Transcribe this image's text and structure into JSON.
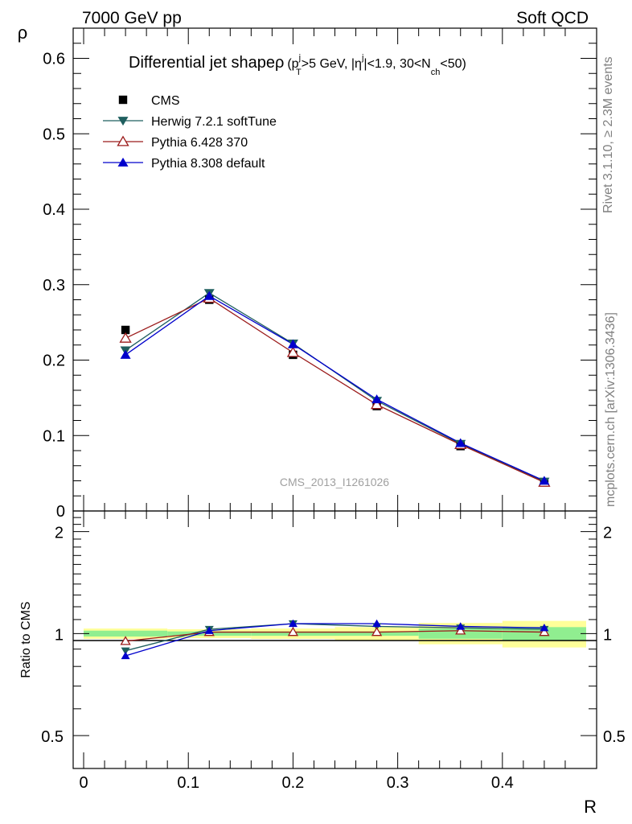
{
  "header": {
    "left": "7000 GeV pp",
    "right": "Soft QCD"
  },
  "side_labels": {
    "rivet": "Rivet 3.1.10, ≥ 2.3M events",
    "mcplots": "mcplots.cern.ch [arXiv:1306.3436]"
  },
  "watermark": "CMS_2013_I1261026",
  "chart_data": [
    {
      "type": "scatter",
      "panel": "main",
      "title": {
        "main": "Differential jet shapeρ",
        "cond_open": "(p",
        "pt_sup": "j",
        "pt_sub": "T",
        "cond_mid": ">5 GeV, |η",
        "eta_sup": "j",
        "cond_mid2": "|<1.9, 30<N",
        "nch_sub": "ch",
        "cond_close": "<50)"
      },
      "ylabel": "ρ",
      "xlabel": "R",
      "xlim": [
        -0.01,
        0.49
      ],
      "ylim": [
        0,
        0.64
      ],
      "yticks": [
        0.1,
        0.2,
        0.3,
        0.4,
        0.5,
        0.6
      ],
      "ytick_labels": [
        "0.1",
        "0.2",
        "0.3",
        "0.4",
        "0.5",
        "0.6"
      ],
      "bottom_tick_label": "0",
      "x": [
        0.04,
        0.12,
        0.2,
        0.28,
        0.36,
        0.44
      ],
      "legend_position": "top-left",
      "series": [
        {
          "name": "CMS",
          "color": "#000000",
          "marker": "square",
          "values": [
            0.24,
            0.28,
            0.207,
            0.139,
            0.086,
            0.038
          ]
        },
        {
          "name": "Herwig 7.2.1 softTune",
          "color": "#1f5f5f",
          "marker": "triangle-down",
          "values": [
            0.213,
            0.289,
            0.222,
            0.146,
            0.089,
            0.039
          ]
        },
        {
          "name": "Pythia 6.428 370",
          "color": "#9b1b1b",
          "marker": "triangle-up-open",
          "values": [
            0.229,
            0.282,
            0.21,
            0.141,
            0.088,
            0.038
          ]
        },
        {
          "name": "Pythia 8.308 default",
          "color": "#0000cc",
          "marker": "triangle-up",
          "values": [
            0.207,
            0.285,
            0.221,
            0.148,
            0.09,
            0.04
          ]
        }
      ]
    },
    {
      "type": "scatter",
      "panel": "ratio",
      "ylabel": "Ratio to CMS",
      "xlabel": "R",
      "ylim": [
        0.4,
        2.3
      ],
      "yscale": "log",
      "yticks": [
        0.5,
        1,
        2
      ],
      "ytick_labels": [
        "0.5",
        "1",
        "2"
      ],
      "xticks": [
        0,
        0.1,
        0.2,
        0.3,
        0.4
      ],
      "xtick_labels": [
        "0",
        "0.1",
        "0.2",
        "0.3",
        "0.4"
      ],
      "x": [
        0.04,
        0.12,
        0.2,
        0.28,
        0.36,
        0.44
      ],
      "bin_edges": [
        0.0,
        0.08,
        0.16,
        0.24,
        0.32,
        0.4,
        0.48
      ],
      "band_stat": {
        "color": "#90ee90",
        "lo": [
          0.98,
          0.985,
          0.985,
          0.985,
          0.965,
          0.955
        ],
        "hi": [
          1.02,
          1.015,
          1.015,
          1.015,
          1.035,
          1.045
        ]
      },
      "band_total": {
        "color": "#ffff99",
        "lo": [
          0.965,
          0.97,
          0.965,
          0.955,
          0.93,
          0.91
        ],
        "hi": [
          1.035,
          1.03,
          1.035,
          1.045,
          1.075,
          1.09
        ]
      },
      "series": [
        {
          "name": "Herwig 7.2.1 softTune",
          "color": "#1f5f5f",
          "marker": "triangle-down",
          "values": [
            0.89,
            1.03,
            1.07,
            1.05,
            1.04,
            1.03
          ]
        },
        {
          "name": "Pythia 6.428 370",
          "color": "#9b1b1b",
          "marker": "triangle-up-open",
          "values": [
            0.95,
            1.01,
            1.01,
            1.01,
            1.02,
            1.01
          ]
        },
        {
          "name": "Pythia 8.308 default",
          "color": "#0000cc",
          "marker": "triangle-up",
          "values": [
            0.86,
            1.02,
            1.07,
            1.07,
            1.05,
            1.04
          ]
        }
      ]
    }
  ]
}
